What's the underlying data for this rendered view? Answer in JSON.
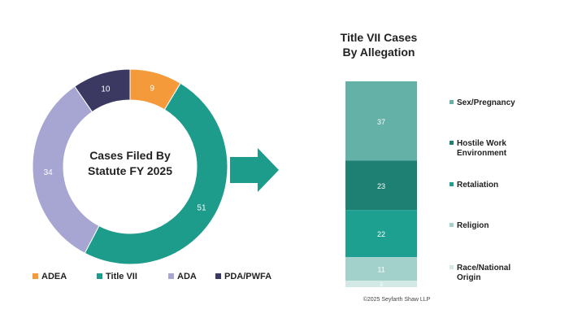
{
  "chart_data": [
    {
      "type": "pie",
      "title_lines": [
        "Cases Filed By",
        "Statute FY 2025"
      ],
      "categories": [
        "ADEA",
        "Title VII",
        "ADA",
        "PDA/PWFA"
      ],
      "values": [
        9,
        51,
        34,
        10
      ],
      "colors": [
        "#f59a3a",
        "#1d9c8c",
        "#a7a5d2",
        "#3b3962"
      ],
      "label_colors": [
        "#ffffff",
        "#ffffff",
        "#ffffff",
        "#ffffff"
      ],
      "legend_position": "bottom",
      "donut": true
    },
    {
      "type": "bar",
      "stacked": true,
      "title_lines": [
        "Title VII Cases",
        "By Allegation"
      ],
      "categories": [
        "Sex/Pregnancy",
        "Hostile Work Environment",
        "Retaliation",
        "Religion",
        "Race/National Origin"
      ],
      "legend_lines": [
        [
          "Sex/Pregnancy"
        ],
        [
          "Hostile Work",
          "Environment"
        ],
        [
          "Retaliation"
        ],
        [
          "Religion"
        ],
        [
          "Race/National",
          "Origin"
        ]
      ],
      "values": [
        37,
        23,
        22,
        11,
        3
      ],
      "colors": [
        "#63b1a7",
        "#1e7f73",
        "#1da08f",
        "#a2d1cb",
        "#d3e9e6"
      ],
      "legend_position": "right"
    }
  ],
  "copyright": "©2025 Seyfarth Shaw LLP",
  "arrow_color": "#1d9c8c"
}
